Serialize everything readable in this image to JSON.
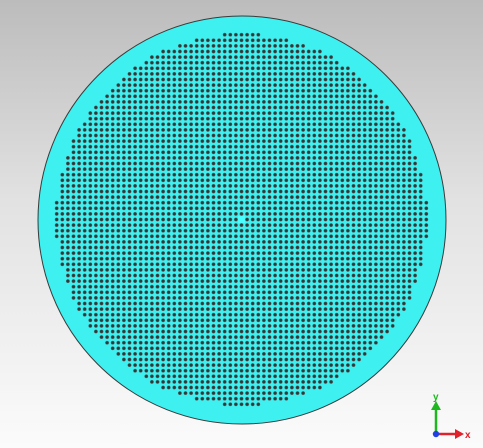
{
  "viewport": {
    "background_top": "#bcbcbc",
    "background_bottom": "#fbfbfb"
  },
  "model": {
    "name": "perforated-circular-plate",
    "plate_color": "#3ef0f0",
    "edge_color": "#3a3a3a",
    "hole_color": "#2b3a3a",
    "hole_rim_color": "#5a7a7a",
    "center_marker_color": "#4dfcfc",
    "hole_grid": "square",
    "perforated_region": "circular"
  },
  "axes": {
    "x_label": "x",
    "y_label": "y",
    "x_color": "#e0202a",
    "y_color": "#1fb71f",
    "z_color": "#2040e0"
  }
}
